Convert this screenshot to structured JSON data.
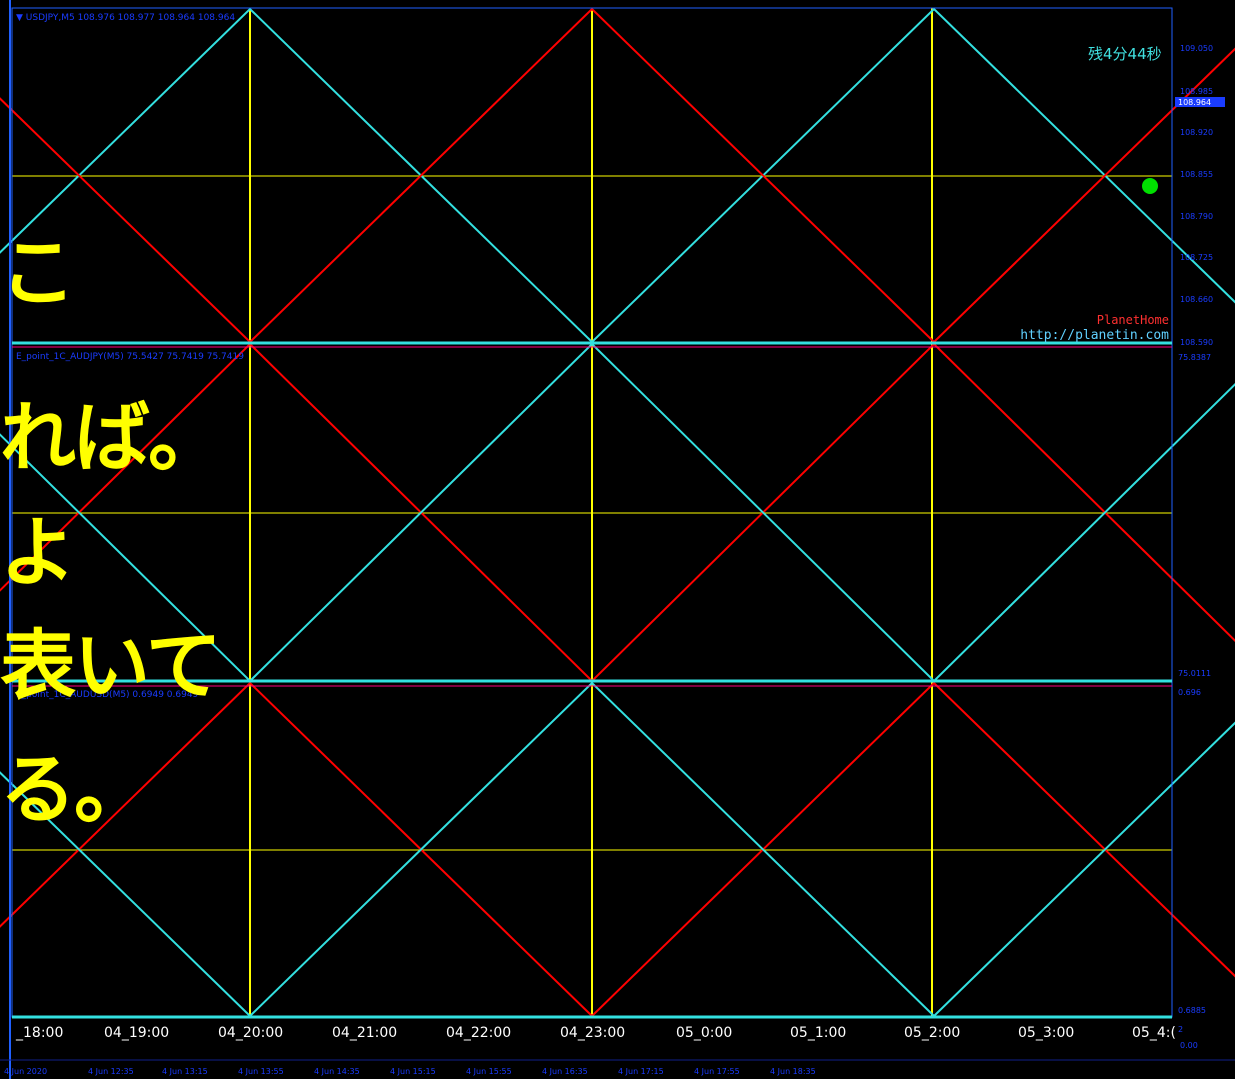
{
  "colors": {
    "background": "#000000",
    "red_line": "#ff0000",
    "cyan_line": "#33e0e0",
    "yellow_grid": "#ffff00",
    "panel_border": "#2060ff",
    "scale_text": "#1a3cff",
    "timer_text": "#40e0e0",
    "marker": "#00e000",
    "overlay_text": "#ffff00"
  },
  "panels": [
    {
      "title": "▼ USDJPY,M5  108.976 108.977 108.964 108.964",
      "price_labels": [
        "109.050",
        "108.985",
        "108.964",
        "108.920",
        "108.855",
        "108.790",
        "108.725",
        "108.660",
        "108.590"
      ],
      "current_price": "108.964"
    },
    {
      "title": "E_point_1C_AUDJPY(M5) 75.5427 75.7419 75.7419",
      "price_labels": [
        "75.8387",
        "75.0111"
      ]
    },
    {
      "title": "E_point_1C_AUDUSD(M5) 0.6949 0.6949",
      "price_labels": [
        "0.696",
        "0.6885"
      ]
    }
  ],
  "timer": "残4分44秒",
  "watermark": {
    "name": "PlanetHome",
    "url": "http://planetin.com"
  },
  "x_axis_labels": [
    "_18:00",
    "04_19:00",
    "04_20:00",
    "04_21:00",
    "04_22:00",
    "04_23:00",
    "05_0:00",
    "05_1:00",
    "05_2:00",
    "05_3:00",
    "05_4:("
  ],
  "bottom_scale": [
    "2",
    "0.00"
  ],
  "date_labels": [
    "4 Jun 2020",
    "4 Jun 12:35",
    "4 Jun 13:15",
    "4 Jun 13:55",
    "4 Jun 14:35",
    "4 Jun 15:15",
    "4 Jun 15:55",
    "4 Jun 16:35",
    "4 Jun 17:15",
    "4 Jun 17:55",
    "4 Jun 18:35"
  ],
  "overlay_lines": [
    "こ",
    "れば。",
    "よ",
    "表いて",
    "る。"
  ]
}
